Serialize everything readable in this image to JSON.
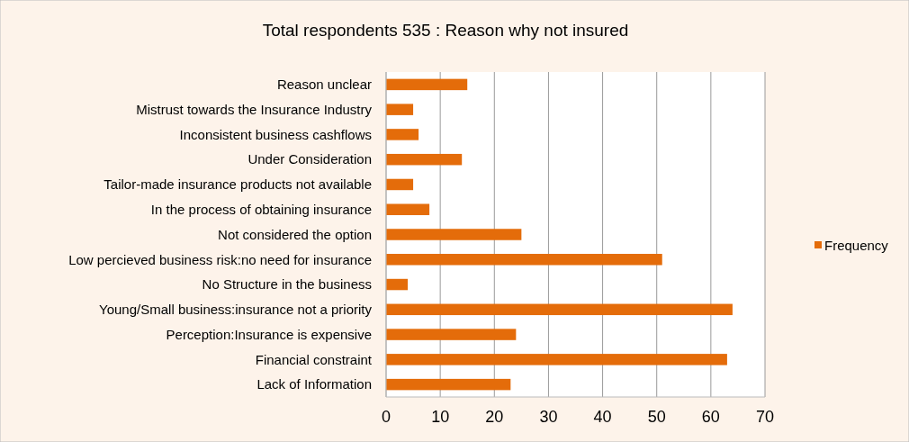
{
  "chart_data": {
    "type": "bar",
    "orientation": "horizontal",
    "title": "Total respondents 535  : Reason why not insured",
    "categories": [
      "Reason unclear",
      "Mistrust towards the Insurance Industry",
      "Inconsistent business cashflows",
      "Under Consideration",
      "Tailor-made insurance products not available",
      "In the process of obtaining insurance",
      "Not considered the option",
      "Low percieved business risk:no need for insurance",
      "No Structure in the business",
      "Young/Small business:insurance not a priority",
      "Perception:Insurance is expensive",
      "Financial constraint",
      "Lack of Information"
    ],
    "series": [
      {
        "name": "Frequency",
        "color": "#e46c0a",
        "values": [
          15,
          5,
          6,
          14,
          5,
          8,
          25,
          51,
          4,
          64,
          24,
          63,
          23
        ]
      }
    ],
    "xlim": [
      0,
      70
    ],
    "xticks": [
      0,
      10,
      20,
      30,
      40,
      50,
      60,
      70
    ],
    "grid": "x",
    "legend": "right"
  }
}
